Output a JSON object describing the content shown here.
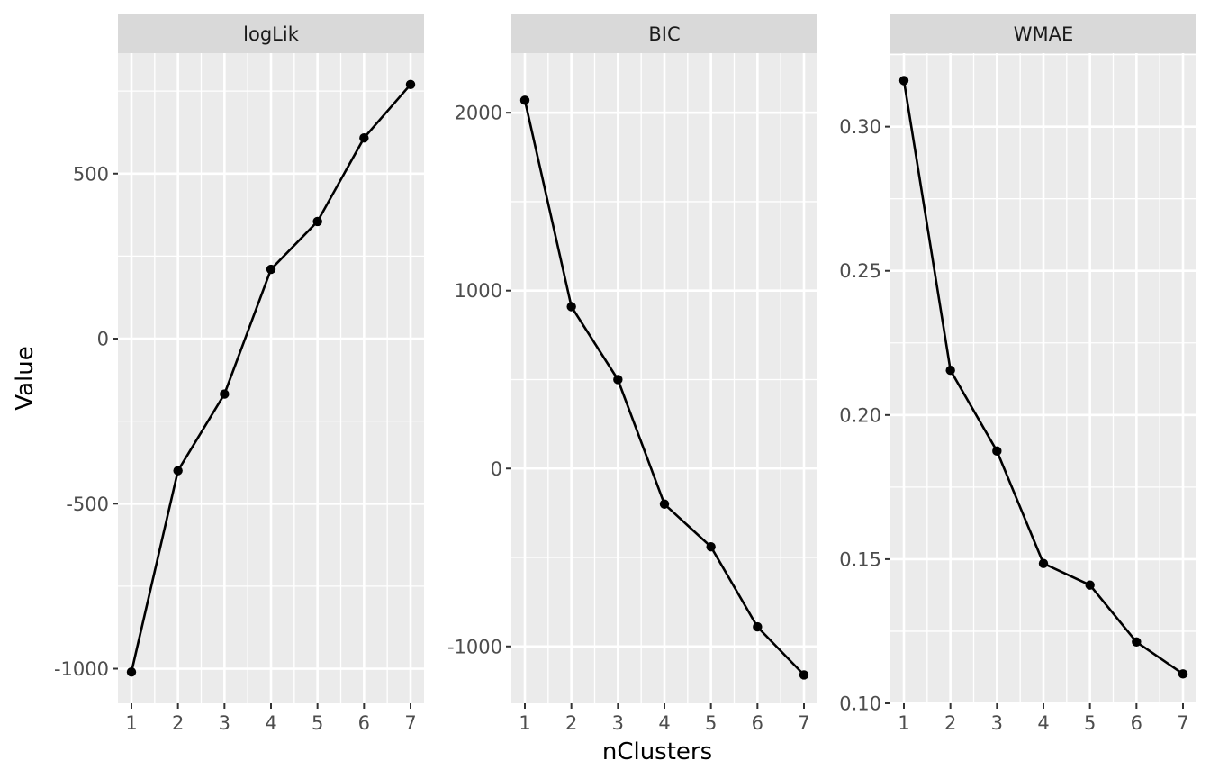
{
  "chart_data": [
    {
      "type": "line",
      "facet": "logLik",
      "x": [
        1,
        2,
        3,
        4,
        5,
        6,
        7
      ],
      "values": [
        -1010,
        -400,
        -168,
        210,
        355,
        608,
        770
      ],
      "ylim": [
        -1105,
        865
      ],
      "yticks": [
        -1000,
        -500,
        0,
        500
      ],
      "ytick_labels": [
        "-1000",
        "-500",
        "0",
        "500"
      ],
      "xticks": [
        1,
        2,
        3,
        4,
        5,
        6,
        7
      ],
      "xtick_labels": [
        "1",
        "2",
        "3",
        "4",
        "5",
        "6",
        "7"
      ]
    },
    {
      "type": "line",
      "facet": "BIC",
      "x": [
        1,
        2,
        3,
        4,
        5,
        6,
        7
      ],
      "values": [
        2070,
        910,
        500,
        -200,
        -440,
        -890,
        -1160
      ],
      "ylim": [
        -1320,
        2335
      ],
      "yticks": [
        -1000,
        0,
        1000,
        2000
      ],
      "ytick_labels": [
        "-1000",
        "0",
        "1000",
        "2000"
      ],
      "xticks": [
        1,
        2,
        3,
        4,
        5,
        6,
        7
      ],
      "xtick_labels": [
        "1",
        "2",
        "3",
        "4",
        "5",
        "6",
        "7"
      ]
    },
    {
      "type": "line",
      "facet": "WMAE",
      "x": [
        1,
        2,
        3,
        4,
        5,
        6,
        7
      ],
      "values": [
        0.316,
        0.2155,
        0.1875,
        0.1485,
        0.141,
        0.1213,
        0.1102
      ],
      "ylim": [
        0.1,
        0.3255
      ],
      "yticks": [
        0.1,
        0.15,
        0.2,
        0.25,
        0.3
      ],
      "ytick_labels": [
        "0.10",
        "0.15",
        "0.20",
        "0.25",
        "0.30"
      ],
      "xticks": [
        1,
        2,
        3,
        4,
        5,
        6,
        7
      ],
      "xtick_labels": [
        "1",
        "2",
        "3",
        "4",
        "5",
        "6",
        "7"
      ]
    }
  ],
  "labels": {
    "xlabel": "nClusters",
    "ylabel": "Value"
  }
}
